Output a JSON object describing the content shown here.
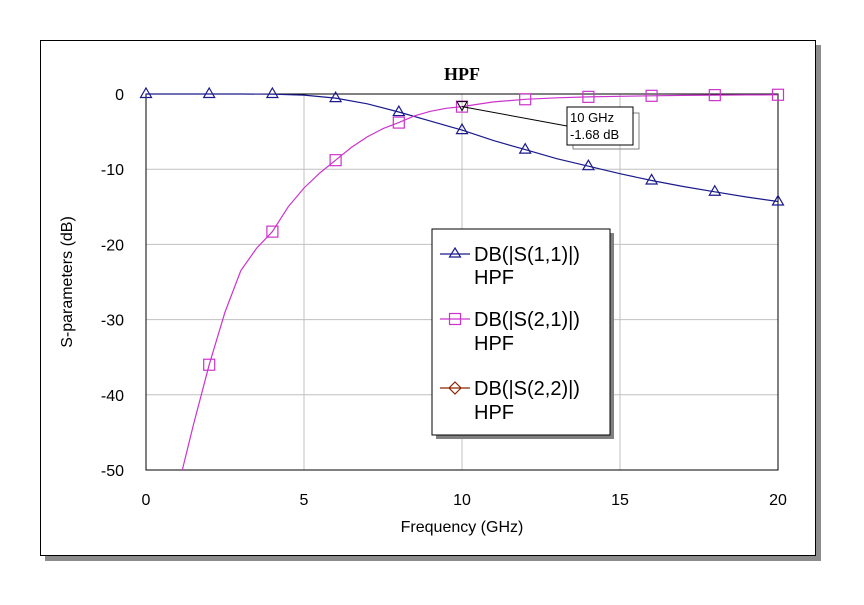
{
  "chart_data": {
    "type": "line",
    "title": "HPF",
    "xlabel": "Frequency (GHz)",
    "ylabel": "S-parameters (dB)",
    "xlim": [
      0,
      20
    ],
    "ylim": [
      -50,
      0
    ],
    "xticks": [
      "0",
      "5",
      "10",
      "15",
      "20"
    ],
    "yticks": [
      "0",
      "-10",
      "-20",
      "-30",
      "-40",
      "-50"
    ],
    "grid": true,
    "legend_position": "center-right",
    "series": [
      {
        "name": "DB(|S(1,1)|)",
        "name_line2": "HPF",
        "color": "#1a1a8c",
        "marker": "triangle",
        "x": [
          0,
          1,
          2,
          3,
          4,
          5,
          6,
          7,
          8,
          9,
          10,
          11,
          12,
          13,
          14,
          15,
          16,
          17,
          18,
          19,
          20
        ],
        "y": [
          0,
          0,
          0,
          0,
          -0.02,
          -0.15,
          -0.55,
          -1.3,
          -2.4,
          -3.6,
          -4.8,
          -6.2,
          -7.4,
          -8.6,
          -9.6,
          -10.6,
          -11.5,
          -12.3,
          -13.0,
          -13.7,
          -14.3
        ]
      },
      {
        "name": "DB(|S(2,1)|)",
        "name_line2": "HPF",
        "color": "#cc33cc",
        "marker": "square",
        "x": [
          1.15,
          1.5,
          2,
          2.5,
          3,
          3.5,
          4,
          4.5,
          5,
          5.5,
          6,
          6.5,
          7,
          7.5,
          8,
          8.5,
          9,
          9.5,
          10,
          11,
          12,
          13,
          14,
          15,
          16,
          17,
          18,
          19,
          20
        ],
        "y": [
          -50,
          -44,
          -36,
          -29,
          -23.5,
          -20.5,
          -18.3,
          -15,
          -12.5,
          -10.5,
          -8.8,
          -7.1,
          -5.7,
          -4.6,
          -3.8,
          -2.9,
          -2.3,
          -1.9,
          -1.68,
          -1.05,
          -0.7,
          -0.5,
          -0.38,
          -0.3,
          -0.24,
          -0.19,
          -0.15,
          -0.12,
          -0.1
        ]
      },
      {
        "name": "DB(|S(2,2)|)",
        "name_line2": "HPF",
        "color": "#8b2500",
        "marker": "diamond",
        "x": [],
        "y": []
      }
    ],
    "markers_s11": [
      [
        0,
        0
      ],
      [
        2,
        0
      ],
      [
        4,
        0
      ],
      [
        6,
        -0.55
      ],
      [
        8,
        -2.4
      ],
      [
        10,
        -4.8
      ],
      [
        12,
        -7.4
      ],
      [
        14,
        -9.6
      ],
      [
        16,
        -11.5
      ],
      [
        18,
        -13.0
      ],
      [
        20,
        -14.3
      ]
    ],
    "markers_s21": [
      [
        2,
        -36
      ],
      [
        4,
        -18.3
      ],
      [
        6,
        -8.8
      ],
      [
        8,
        -3.8
      ],
      [
        10,
        -1.68
      ],
      [
        12,
        -0.7
      ],
      [
        14,
        -0.38
      ],
      [
        16,
        -0.24
      ],
      [
        18,
        -0.15
      ],
      [
        20,
        -0.1
      ]
    ],
    "annotation": {
      "line1": "10 GHz",
      "line2": "-1.68 dB",
      "x": 10,
      "y": -1.68
    }
  }
}
